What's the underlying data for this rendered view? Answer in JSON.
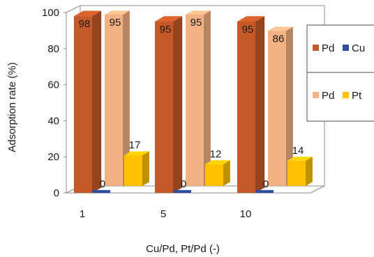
{
  "chart_data": {
    "type": "bar",
    "style": "3d-clustered",
    "title": "",
    "categories": [
      "1",
      "5",
      "10"
    ],
    "xlabel": "Cu/Pd, Pt/Pd (-)",
    "ylabel": "Adsorption rate (%)",
    "ylim": [
      0,
      100
    ],
    "yticks": [
      "0",
      "20",
      "40",
      "60",
      "80",
      "100"
    ],
    "grid": false,
    "legend_position": "right",
    "groups": [
      {
        "series": [
          {
            "name": "Pd",
            "values": [
              98,
              95,
              95
            ],
            "labels": [
              "98",
              "95",
              "95"
            ],
            "color": "#c55a28"
          },
          {
            "name": "Cu",
            "values": [
              0,
              0,
              0
            ],
            "labels": [
              "0",
              "0",
              "0"
            ],
            "color": "#2f4f9e"
          }
        ]
      },
      {
        "series": [
          {
            "name": "Pd",
            "values": [
              95,
              95,
              86
            ],
            "labels": [
              "95",
              "95",
              "86"
            ],
            "color": "#f4b183"
          },
          {
            "name": "Pt",
            "values": [
              17,
              12,
              14
            ],
            "labels": [
              "17",
              "12",
              "14"
            ],
            "color": "#ffc000"
          }
        ]
      }
    ]
  }
}
